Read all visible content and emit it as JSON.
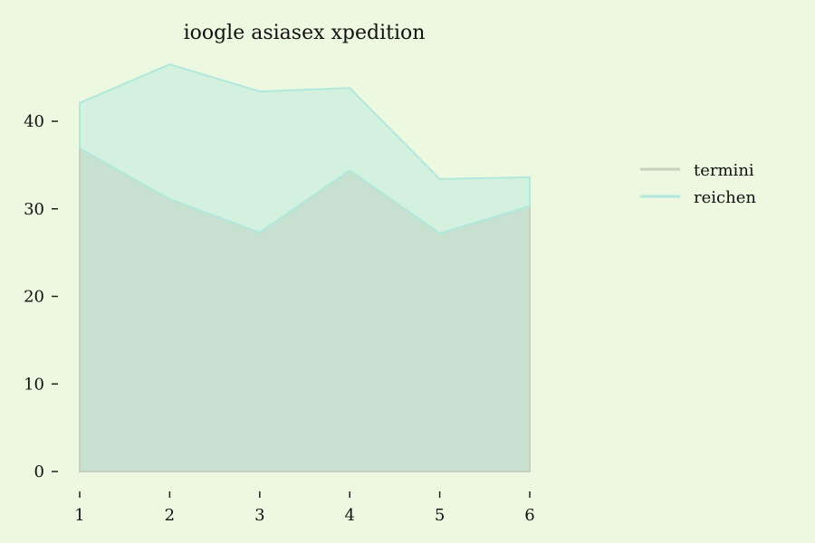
{
  "chart_data": {
    "type": "area",
    "stacked": true,
    "title": "ioogle asiasex xpedition",
    "xlabel": "",
    "ylabel": "",
    "x": [
      1,
      2,
      3,
      4,
      5,
      6
    ],
    "xticks": [
      "1",
      "2",
      "3",
      "4",
      "5",
      "6"
    ],
    "yticks": [
      "0",
      "10",
      "20",
      "30",
      "40"
    ],
    "ylim": [
      -2,
      48
    ],
    "grid": false,
    "legend_position": "right",
    "series": [
      {
        "name": "termini",
        "values": [
          36.9,
          31.1,
          27.3,
          34.4,
          27.2,
          30.3
        ],
        "color": "#c8e0d0",
        "line_color": "#c8cfc0"
      },
      {
        "name": "reichen",
        "values": [
          5.2,
          15.4,
          16.1,
          9.4,
          6.2,
          3.3
        ],
        "color": "#d4f1df",
        "line_color": "#b0e8dc"
      }
    ]
  }
}
